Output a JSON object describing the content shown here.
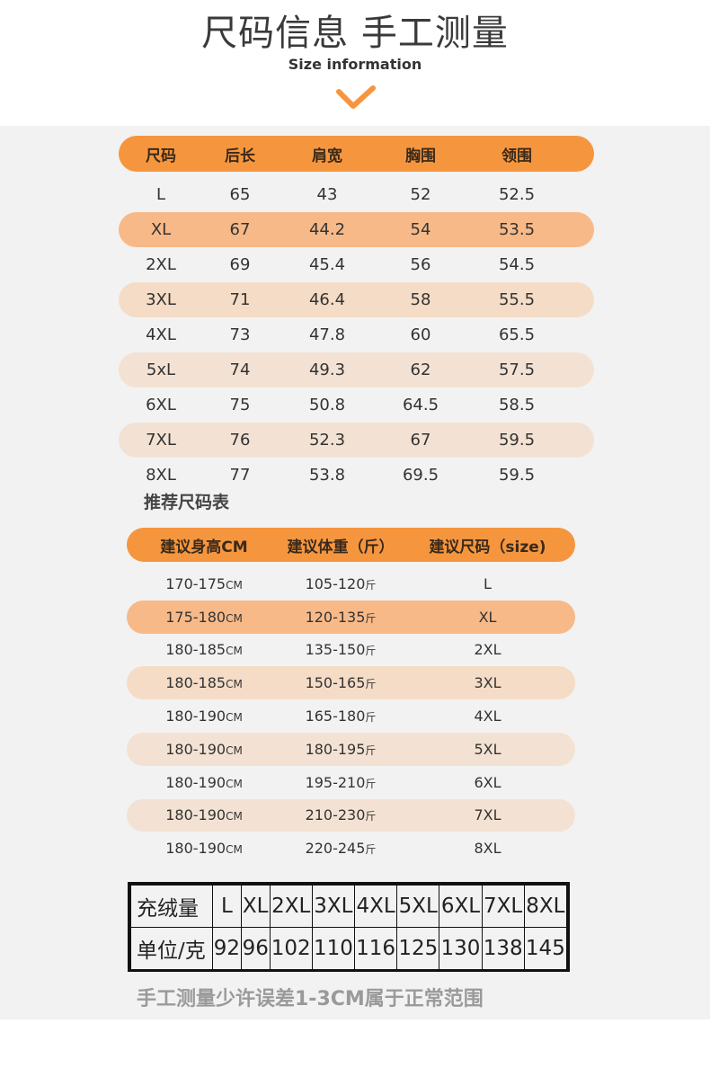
{
  "header": {
    "title": "尺码信息 手工测量",
    "subtitle": "Size information",
    "chevron_icon": "chevron-down-icon",
    "accent_color": "#f5963f"
  },
  "size_table": {
    "columns": [
      "尺码",
      "后长",
      "肩宽",
      "胸围",
      "领围"
    ],
    "rows": [
      [
        "L",
        "65",
        "43",
        "52",
        "52.5"
      ],
      [
        "XL",
        "67",
        "44.2",
        "54",
        "53.5"
      ],
      [
        "2XL",
        "69",
        "45.4",
        "56",
        "54.5"
      ],
      [
        "3XL",
        "71",
        "46.4",
        "58",
        "55.5"
      ],
      [
        "4XL",
        "73",
        "47.8",
        "60",
        "65.5"
      ],
      [
        "5xL",
        "74",
        "49.3",
        "62",
        "57.5"
      ],
      [
        "6XL",
        "75",
        "50.8",
        "64.5",
        "58.5"
      ],
      [
        "7XL",
        "76",
        "52.3",
        "67",
        "59.5"
      ],
      [
        "8XL",
        "77",
        "53.8",
        "69.5",
        "59.5"
      ]
    ]
  },
  "reco": {
    "label": "推荐尺码表",
    "columns": [
      "建议身高CM",
      "建议体重（斤）",
      "建议尺码（size)"
    ],
    "height_unit": "CM",
    "weight_unit": "斤",
    "rows": [
      [
        "170-175",
        "105-120",
        "L"
      ],
      [
        "175-180",
        "120-135",
        "XL"
      ],
      [
        "180-185",
        "135-150",
        "2XL"
      ],
      [
        "180-185",
        "150-165",
        "3XL"
      ],
      [
        "180-190",
        "165-180",
        "4XL"
      ],
      [
        "180-190",
        "180-195",
        "5XL"
      ],
      [
        "180-190",
        "195-210",
        "6XL"
      ],
      [
        "180-190",
        "210-230",
        "7XL"
      ],
      [
        "180-190",
        "220-245",
        "8XL"
      ]
    ]
  },
  "fill_table": {
    "row1_label": "充绒量",
    "row2_label": "单位/克",
    "sizes": [
      "L",
      "XL",
      "2XL",
      "3XL",
      "4XL",
      "5XL",
      "6XL",
      "7XL",
      "8XL"
    ],
    "grams": [
      "92",
      "96",
      "102",
      "110",
      "116",
      "125",
      "130",
      "138",
      "145"
    ]
  },
  "note": "手工测量少许误差1-3CM属于正常范围"
}
